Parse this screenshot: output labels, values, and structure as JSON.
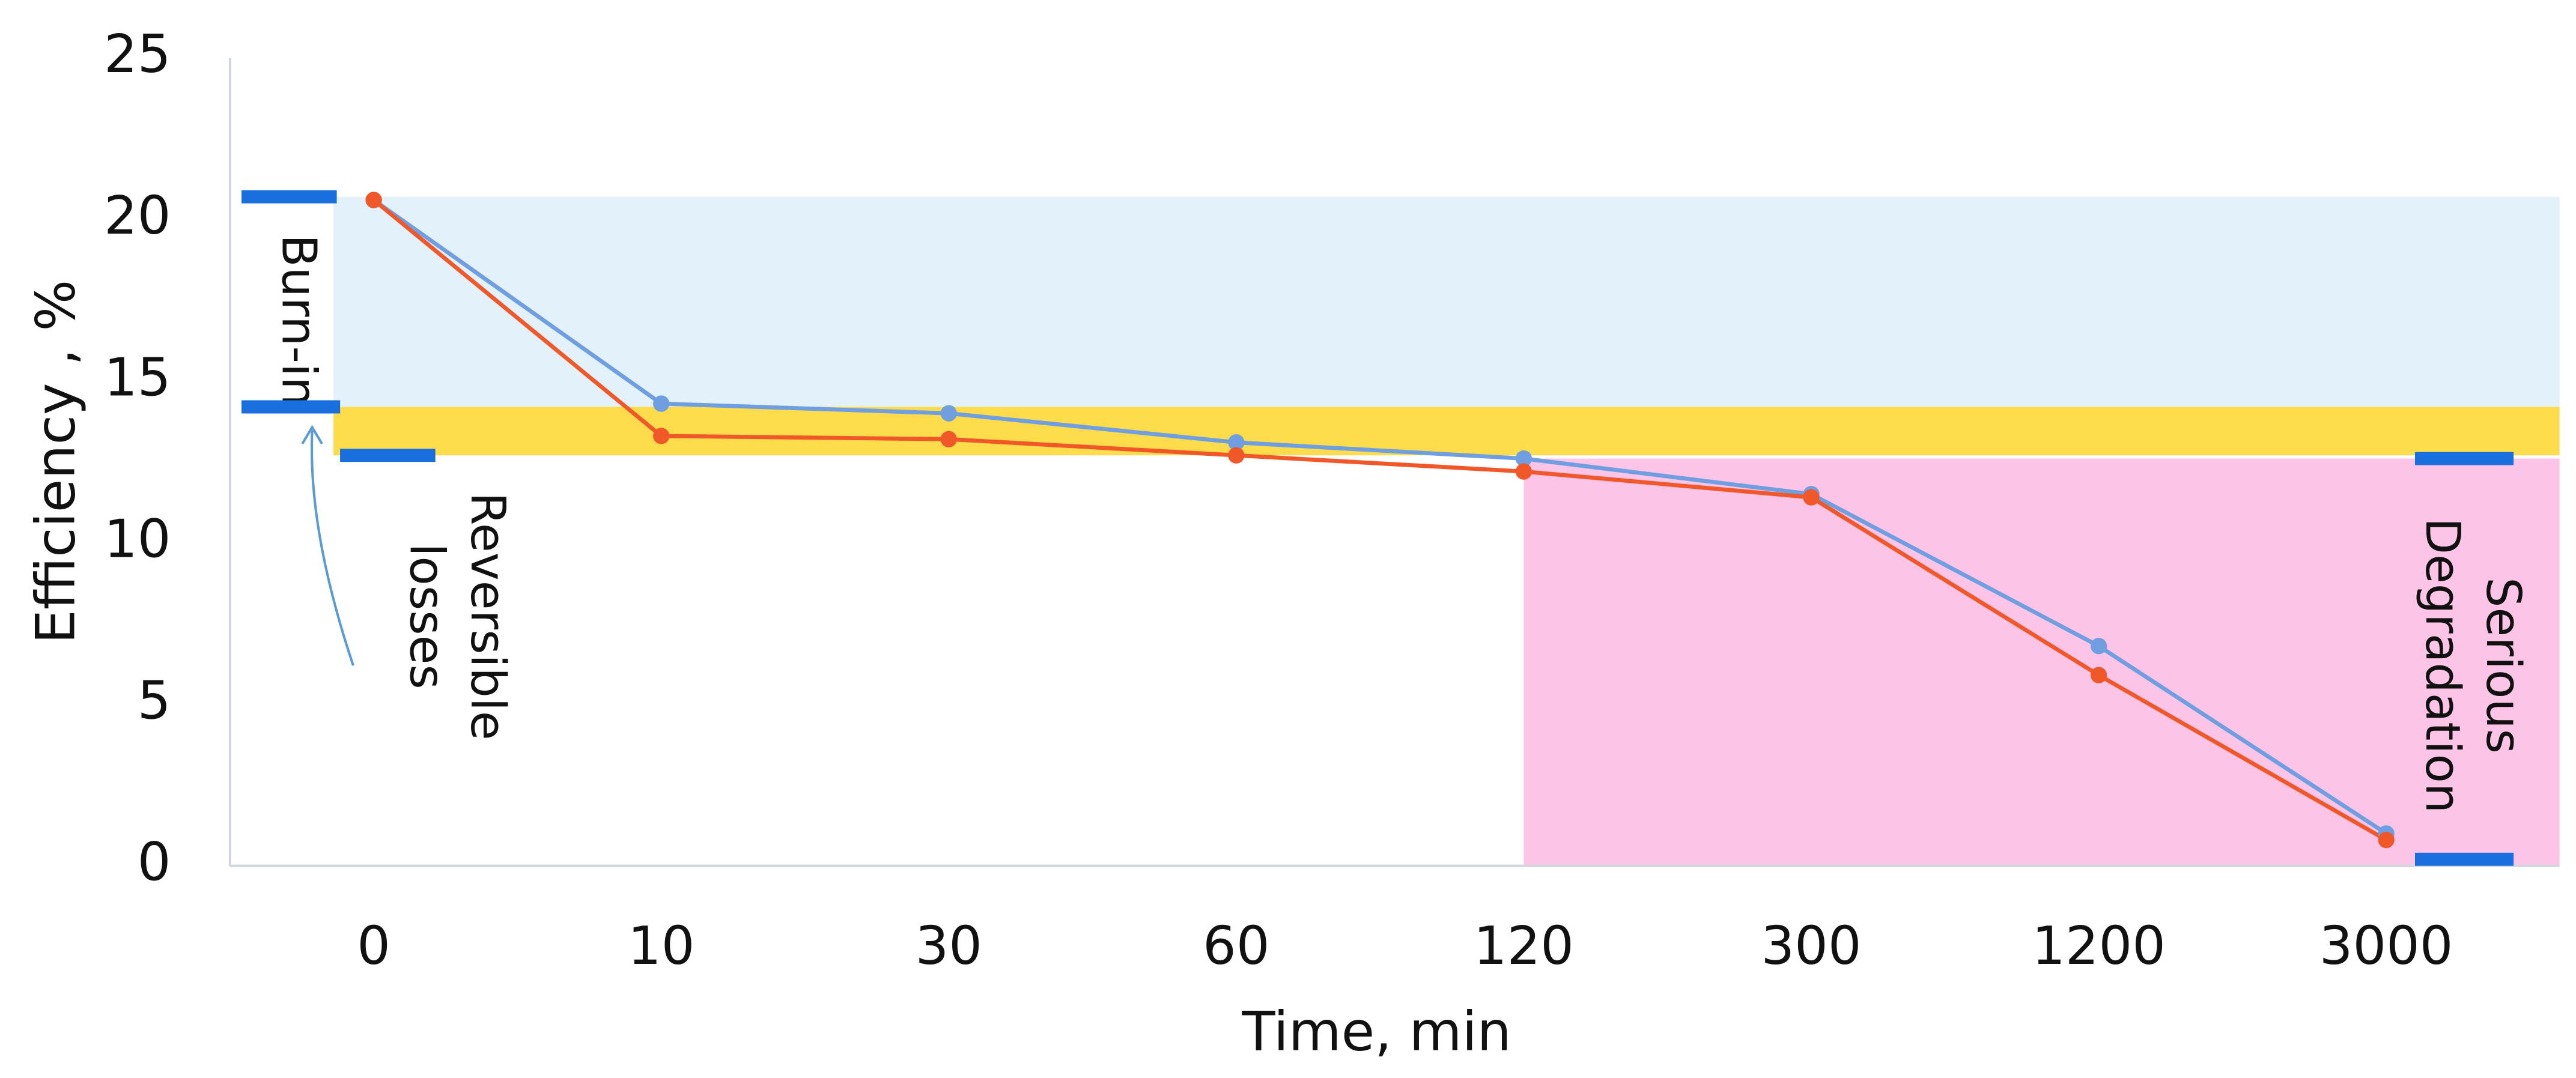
{
  "chart_data": {
    "type": "line",
    "x_label": "Time, min",
    "y_label": "Efficiency , %",
    "categories": [
      "0",
      "10",
      "30",
      "60",
      "120",
      "300",
      "1200",
      "3000"
    ],
    "series": [
      {
        "color": "#6f9fe0",
        "values": [
          20.6,
          14.3,
          14.0,
          13.1,
          12.6,
          11.5,
          6.8,
          1.0
        ]
      },
      {
        "color": "#f0582a",
        "values": [
          20.6,
          13.3,
          13.2,
          12.7,
          12.2,
          11.4,
          5.9,
          0.8
        ]
      }
    ],
    "regions": [
      {
        "lines": [
          "Burn-in"
        ],
        "ylim": [
          14.2,
          20.7
        ],
        "color": "#e3f1fb"
      },
      {
        "lines": [
          "Reversible",
          "losses"
        ],
        "ylim": [
          12.7,
          14.2
        ],
        "color": "#fddc4c"
      },
      {
        "lines": [
          "Serious",
          "Degradation"
        ],
        "ylim": [
          0,
          12.6
        ],
        "from": "120",
        "color": "#fcc4e6"
      }
    ],
    "ylim": [
      0,
      25
    ],
    "yticks": [
      0,
      5,
      10,
      15,
      20,
      25
    ],
    "grid": false
  }
}
